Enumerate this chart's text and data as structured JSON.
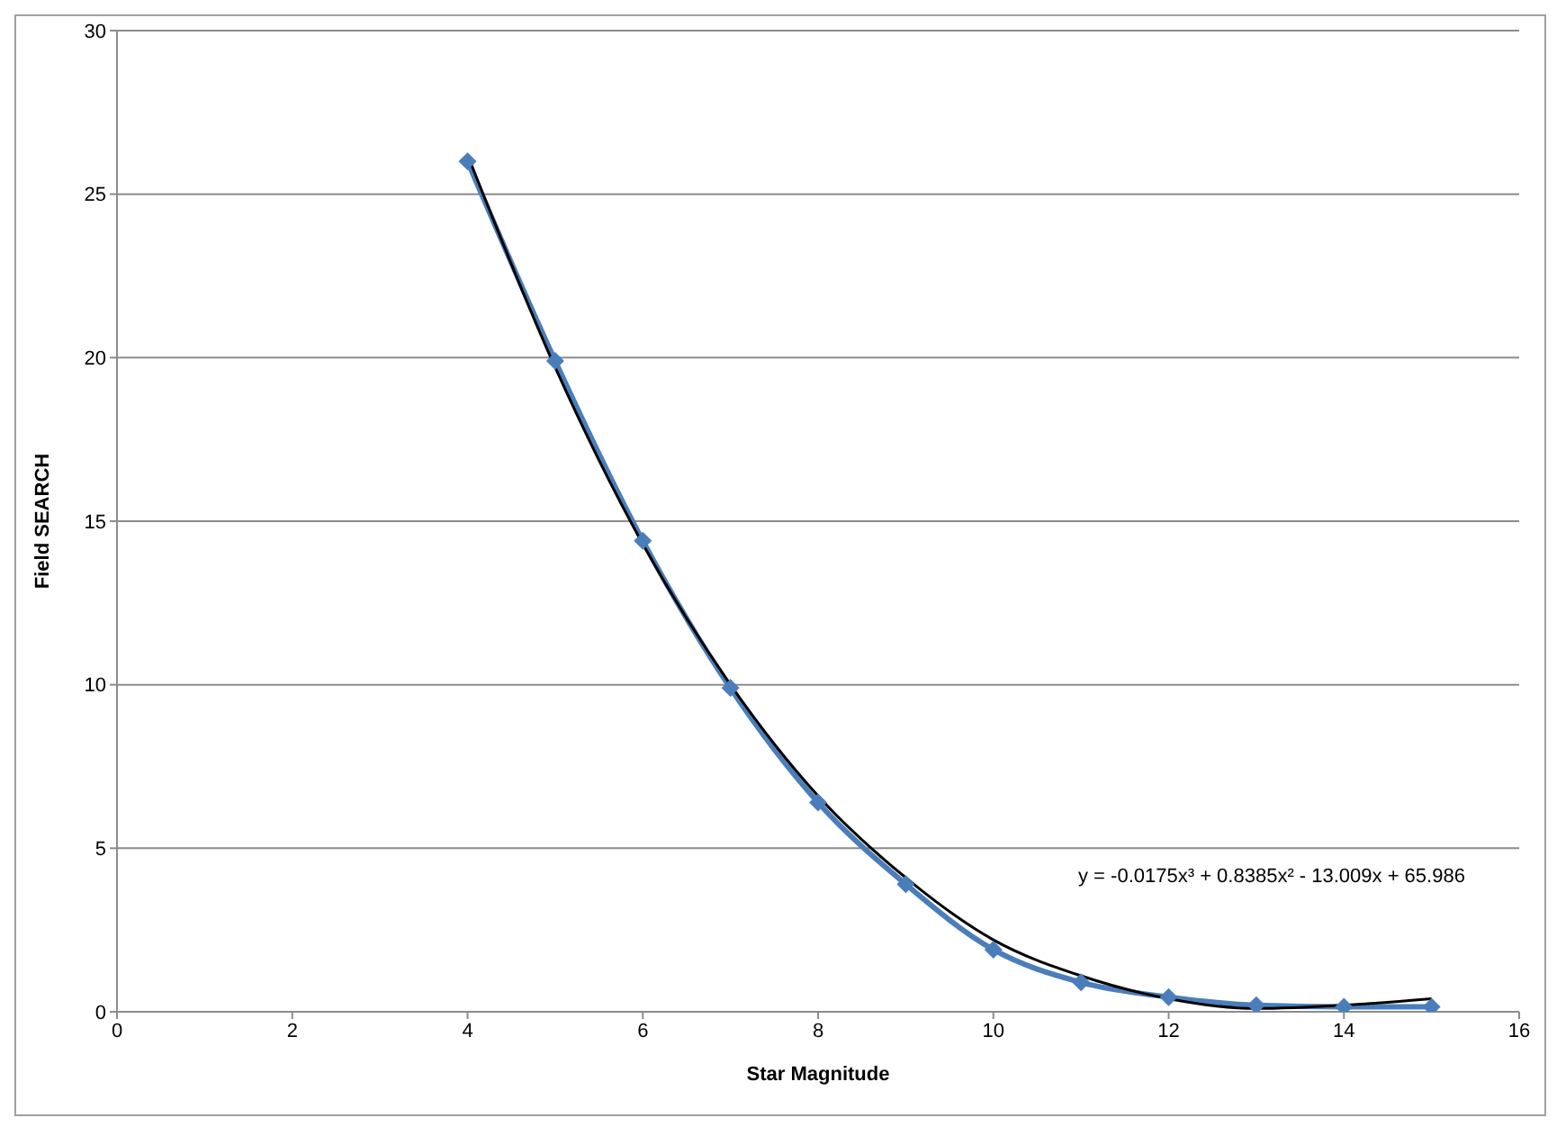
{
  "chart_data": {
    "type": "line",
    "xlabel": "Star Magnitude",
    "ylabel": "Field  SEARCH",
    "x": [
      4,
      5,
      6,
      7,
      8,
      9,
      10,
      11,
      12,
      13,
      14,
      15
    ],
    "series": [
      {
        "color": "#000000",
        "marker": "none",
        "x": [
          4,
          5,
          6,
          7,
          8,
          9,
          10,
          11,
          12,
          13,
          14,
          15
        ],
        "values": [
          26.2,
          19.7,
          14.3,
          10.0,
          6.6,
          4.1,
          2.2,
          1.1,
          0.4,
          0.1,
          0.2,
          0.4
        ]
      },
      {
        "color": "#4a7ebb",
        "marker": "diamond",
        "values": [
          26.0,
          19.9,
          14.4,
          9.9,
          6.4,
          3.9,
          1.9,
          0.9,
          0.45,
          0.2,
          0.15,
          0.15
        ]
      }
    ],
    "xlim": [
      0,
      16
    ],
    "xticks": [
      0,
      2,
      4,
      6,
      8,
      10,
      12,
      14,
      16
    ],
    "ylim": [
      0,
      30
    ],
    "yticks": [
      0,
      5,
      10,
      15,
      20,
      25,
      30
    ],
    "grid": "y",
    "legend": false,
    "line_style": "solid",
    "annotations": [
      "y = -0.0175x³ + 0.8385x² - 13.009x + 65.986"
    ]
  }
}
